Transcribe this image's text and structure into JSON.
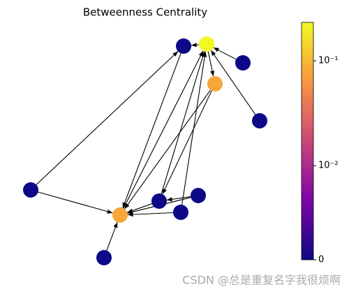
{
  "title": "Betweenness Centrality",
  "nodes": [
    {
      "value": 0.233
    },
    {
      "value": 0
    },
    {
      "value": 0
    },
    {
      "value": 0.08
    },
    {
      "value": 0
    },
    {
      "value": 0
    },
    {
      "value": 0.08
    },
    {
      "value": 0
    },
    {
      "value": 0
    },
    {
      "value": 0
    },
    {
      "value": 0
    }
  ],
  "edges": [
    [
      0,
      1
    ],
    [
      2,
      0
    ],
    [
      4,
      0
    ],
    [
      0,
      3
    ],
    [
      3,
      7
    ],
    [
      3,
      6
    ],
    [
      1,
      6
    ],
    [
      6,
      0
    ],
    [
      7,
      0
    ],
    [
      9,
      0
    ],
    [
      5,
      1
    ],
    [
      5,
      6
    ],
    [
      7,
      6
    ],
    [
      8,
      6
    ],
    [
      9,
      6
    ],
    [
      10,
      6
    ],
    [
      8,
      7
    ]
  ],
  "colorbar": {
    "colormap": "plasma",
    "scale": "symlog",
    "clim": [
      0,
      0.233
    ],
    "linthresh": 0.002,
    "linscale": 0.2,
    "ticks": [
      {
        "value": 0.1,
        "label": "10⁻¹"
      },
      {
        "value": 0.01,
        "label": "10⁻²"
      },
      0
    ]
  },
  "watermark": "CSDN @总是重复名字我很烦啊"
}
